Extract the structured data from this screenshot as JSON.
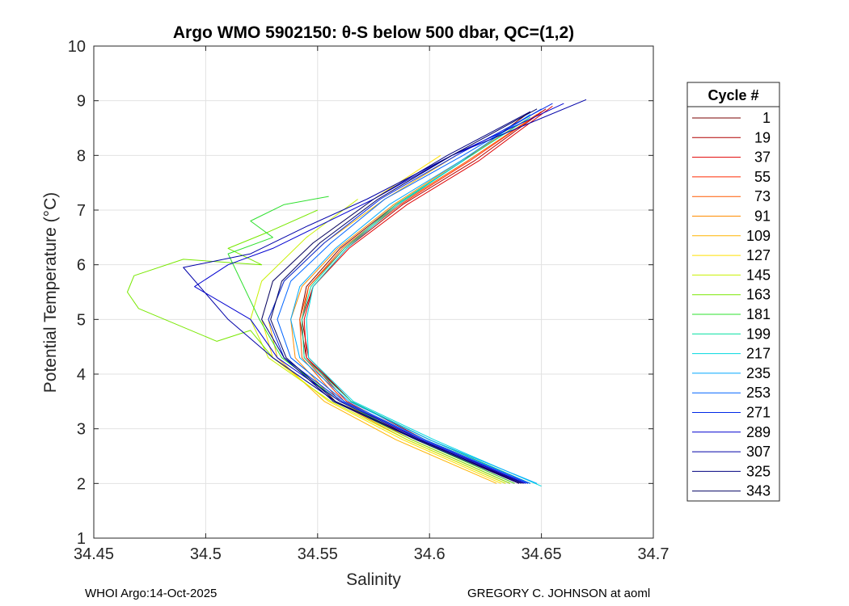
{
  "chart_data": {
    "type": "line",
    "title": "Argo WMO 5902150: θ-S below 500 dbar,  QC=(1,2)",
    "xlabel": "Salinity",
    "ylabel": "Potential Temperature (°C)",
    "xlim": [
      34.45,
      34.7
    ],
    "ylim": [
      1,
      10
    ],
    "xticks": [
      34.45,
      34.5,
      34.55,
      34.6,
      34.65,
      34.7
    ],
    "xtick_labels": [
      "34.45",
      "34.5",
      "34.55",
      "34.6",
      "34.65",
      "34.7"
    ],
    "yticks": [
      1,
      2,
      3,
      4,
      5,
      6,
      7,
      8,
      9,
      10
    ],
    "ytick_labels": [
      "1",
      "2",
      "3",
      "4",
      "5",
      "6",
      "7",
      "8",
      "9",
      "10"
    ],
    "grid": true,
    "legend_title": "Cycle #",
    "legend_position": "right",
    "series": [
      {
        "name": "1",
        "color": "#7a0000",
        "salinity": [
          34.645,
          34.6,
          34.565,
          34.545,
          34.542,
          34.545,
          34.56,
          34.585,
          34.615,
          34.645
        ],
        "theta": [
          2.0,
          2.8,
          3.5,
          4.3,
          5.0,
          5.6,
          6.3,
          7.1,
          7.9,
          8.8
        ]
      },
      {
        "name": "19",
        "color": "#b00000",
        "salinity": [
          34.642,
          34.598,
          34.565,
          34.546,
          34.543,
          34.548,
          34.563,
          34.588,
          34.62,
          34.652
        ],
        "theta": [
          2.0,
          2.8,
          3.5,
          4.3,
          5.0,
          5.6,
          6.3,
          7.1,
          7.9,
          8.85
        ]
      },
      {
        "name": "37",
        "color": "#e00000",
        "salinity": [
          34.64,
          34.596,
          34.563,
          34.545,
          34.544,
          34.548,
          34.564,
          34.59,
          34.622,
          34.655
        ],
        "theta": [
          2.0,
          2.8,
          3.5,
          4.3,
          5.0,
          5.6,
          6.3,
          7.1,
          7.9,
          8.9
        ]
      },
      {
        "name": "55",
        "color": "#ff2a00",
        "salinity": [
          34.638,
          34.594,
          34.562,
          34.544,
          34.543,
          34.546,
          34.562,
          34.587,
          34.618,
          34.65
        ],
        "theta": [
          2.0,
          2.8,
          3.5,
          4.3,
          5.0,
          5.6,
          6.3,
          7.1,
          7.9,
          8.8
        ]
      },
      {
        "name": "73",
        "color": "#ff5a00",
        "salinity": [
          34.636,
          34.592,
          34.56,
          34.543,
          34.542,
          34.546,
          34.561,
          34.586,
          34.617,
          34.648
        ],
        "theta": [
          2.0,
          2.8,
          3.5,
          4.3,
          5.0,
          5.6,
          6.3,
          7.1,
          7.9,
          8.75
        ]
      },
      {
        "name": "91",
        "color": "#ff8c00",
        "salinity": [
          34.634,
          34.59,
          34.558,
          34.54,
          34.538,
          34.543,
          34.559,
          34.584,
          34.614,
          34.645
        ],
        "theta": [
          2.0,
          2.8,
          3.5,
          4.3,
          5.0,
          5.6,
          6.3,
          7.1,
          7.9,
          8.7
        ]
      },
      {
        "name": "109",
        "color": "#ffb400",
        "salinity": [
          34.63,
          34.585,
          34.553,
          34.532,
          34.528,
          34.535,
          34.553,
          34.58,
          34.612
        ],
        "theta": [
          2.0,
          2.8,
          3.5,
          4.3,
          5.0,
          5.7,
          6.4,
          7.2,
          8.0
        ]
      },
      {
        "name": "127",
        "color": "#ffe000",
        "salinity": [
          34.632,
          34.588,
          34.555,
          34.53,
          34.525,
          34.53,
          34.548,
          34.575,
          34.605
        ],
        "theta": [
          2.0,
          2.8,
          3.5,
          4.3,
          5.0,
          5.7,
          6.4,
          7.2,
          8.0
        ]
      },
      {
        "name": "145",
        "color": "#c8f000",
        "salinity": [
          34.634,
          34.59,
          34.556,
          34.528,
          34.52,
          34.525,
          34.545,
          34.568
        ],
        "theta": [
          2.0,
          2.8,
          3.5,
          4.3,
          5.0,
          5.7,
          6.5,
          7.2
        ]
      },
      {
        "name": "163",
        "color": "#78e800",
        "salinity": [
          34.636,
          34.592,
          34.558,
          34.53,
          34.52,
          34.505,
          34.47,
          34.465,
          34.468,
          34.49,
          34.525,
          34.51,
          34.528,
          34.55
        ],
        "theta": [
          2.0,
          2.8,
          3.5,
          4.3,
          4.8,
          4.6,
          5.2,
          5.5,
          5.8,
          6.1,
          6.0,
          6.3,
          6.6,
          7.0
        ]
      },
      {
        "name": "181",
        "color": "#2ee02e",
        "salinity": [
          34.638,
          34.594,
          34.56,
          34.534,
          34.524,
          34.51,
          34.53,
          34.52,
          34.535,
          34.555
        ],
        "theta": [
          2.0,
          2.8,
          3.5,
          4.3,
          5.0,
          6.2,
          6.5,
          6.8,
          7.1,
          7.25
        ]
      },
      {
        "name": "199",
        "color": "#00e0a0",
        "salinity": [
          34.645,
          34.6,
          34.565,
          34.544,
          34.543,
          34.547,
          34.562,
          34.585,
          34.615,
          34.645
        ],
        "theta": [
          2.0,
          2.8,
          3.5,
          4.3,
          5.0,
          5.6,
          6.3,
          7.1,
          7.9,
          8.7
        ]
      },
      {
        "name": "217",
        "color": "#00d8e0",
        "salinity": [
          34.65,
          34.602,
          34.566,
          34.546,
          34.545,
          34.548,
          34.563,
          34.586,
          34.615
        ],
        "theta": [
          1.95,
          2.8,
          3.5,
          4.3,
          5.0,
          5.6,
          6.3,
          7.1,
          7.9
        ]
      },
      {
        "name": "235",
        "color": "#00a8ff",
        "salinity": [
          34.648,
          34.6,
          34.564,
          34.542,
          34.538,
          34.542,
          34.558,
          34.582,
          34.614,
          34.645
        ],
        "theta": [
          2.0,
          2.8,
          3.5,
          4.3,
          5.0,
          5.6,
          6.3,
          7.1,
          7.9,
          8.75
        ]
      },
      {
        "name": "253",
        "color": "#0064ff",
        "salinity": [
          34.645,
          34.598,
          34.562,
          34.538,
          34.532,
          34.538,
          34.556,
          34.58,
          34.615,
          34.65
        ],
        "theta": [
          2.0,
          2.8,
          3.5,
          4.3,
          5.0,
          5.7,
          6.4,
          7.2,
          8.0,
          8.85
        ]
      },
      {
        "name": "271",
        "color": "#0028e8",
        "salinity": [
          34.644,
          34.597,
          34.561,
          34.535,
          34.528,
          34.535,
          34.553,
          34.578,
          34.612,
          34.655
        ],
        "theta": [
          2.0,
          2.8,
          3.5,
          4.3,
          5.0,
          5.7,
          6.4,
          7.2,
          8.0,
          8.95
        ]
      },
      {
        "name": "289",
        "color": "#0000d0",
        "salinity": [
          34.643,
          34.596,
          34.56,
          34.532,
          34.52,
          34.495,
          34.51,
          34.53,
          34.55,
          34.575,
          34.61,
          34.66
        ],
        "theta": [
          2.0,
          2.8,
          3.5,
          4.3,
          5.0,
          5.6,
          6.0,
          6.3,
          6.7,
          7.2,
          8.0,
          8.95
        ]
      },
      {
        "name": "307",
        "color": "#0000a8",
        "salinity": [
          34.642,
          34.595,
          34.558,
          34.53,
          34.51,
          34.49,
          34.52,
          34.545,
          34.572,
          34.61,
          34.67
        ],
        "theta": [
          2.0,
          2.8,
          3.5,
          4.3,
          5.0,
          5.95,
          6.2,
          6.7,
          7.2,
          8.0,
          9.02
        ]
      },
      {
        "name": "325",
        "color": "#000080",
        "salinity": [
          34.64,
          34.594,
          34.557,
          34.535,
          34.525,
          34.53,
          34.548,
          34.575,
          34.608,
          34.645
        ],
        "theta": [
          2.0,
          2.8,
          3.5,
          4.3,
          5.0,
          5.7,
          6.4,
          7.2,
          8.0,
          8.8
        ]
      },
      {
        "name": "343",
        "color": "#000060",
        "salinity": [
          34.641,
          34.595,
          34.558,
          34.536,
          34.529,
          34.534,
          34.551,
          34.577,
          34.61,
          34.648
        ],
        "theta": [
          2.0,
          2.8,
          3.5,
          4.3,
          5.0,
          5.7,
          6.4,
          7.2,
          8.0,
          8.85
        ]
      }
    ]
  },
  "footer": {
    "left": "WHOI Argo:14-Oct-2025",
    "right": "GREGORY C. JOHNSON at aoml"
  }
}
